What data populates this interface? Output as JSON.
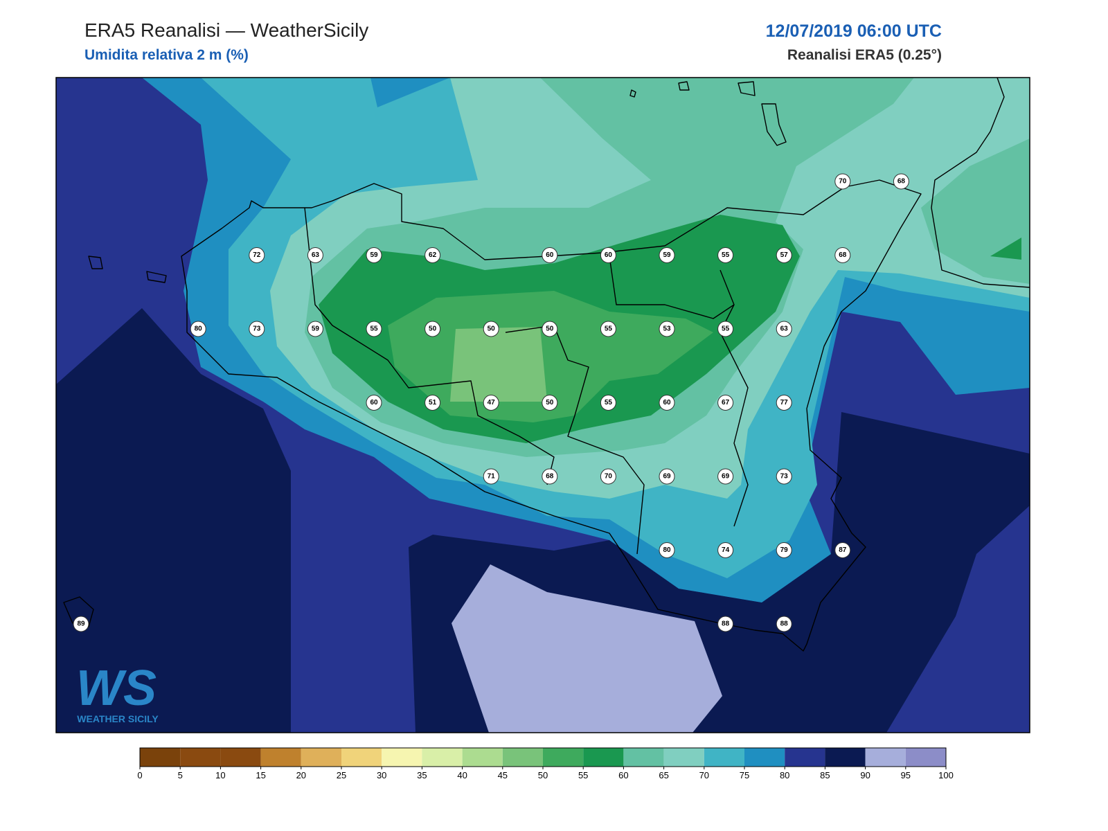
{
  "header": {
    "title": "ERA5 Reanalisi — WeatherSicily",
    "subtitle": "Umidita relativa 2 m (%)",
    "datetime": "12/07/2019 06:00 UTC",
    "source": "Reanalisi ERA5 (0.25°)"
  },
  "stations": {
    "rows": [
      [
        null,
        null,
        null,
        null,
        null,
        null,
        null,
        null,
        null,
        null,
        null,
        null,
        null,
        70,
        68
      ],
      [
        null,
        null,
        null,
        72,
        63,
        59,
        62,
        null,
        60,
        60,
        59,
        55,
        57,
        68,
        null
      ],
      [
        null,
        null,
        80,
        73,
        59,
        55,
        50,
        50,
        50,
        55,
        53,
        55,
        63,
        null,
        null
      ],
      [
        null,
        null,
        null,
        null,
        null,
        60,
        51,
        47,
        50,
        55,
        60,
        67,
        77,
        null,
        null
      ],
      [
        null,
        null,
        null,
        null,
        null,
        null,
        null,
        71,
        68,
        70,
        69,
        69,
        73,
        null,
        null
      ],
      [
        null,
        null,
        null,
        null,
        null,
        null,
        null,
        null,
        null,
        null,
        80,
        74,
        79,
        87,
        null
      ],
      [
        89,
        null,
        null,
        null,
        null,
        null,
        null,
        null,
        null,
        null,
        null,
        88,
        88,
        null,
        null
      ]
    ]
  },
  "logo": {
    "mark": "WS",
    "name": "WEATHER SICILY"
  },
  "colorbar": {
    "ticks": [
      0,
      5,
      10,
      15,
      20,
      25,
      30,
      35,
      40,
      45,
      50,
      55,
      60,
      65,
      70,
      75,
      80,
      85,
      90,
      95,
      100
    ],
    "colors": [
      "#7a420b",
      "#8a4a10",
      "#8a4a10",
      "#bf812d",
      "#dfb05a",
      "#f0d37a",
      "#f6f5b0",
      "#d9efa8",
      "#acdc90",
      "#79c37a",
      "#3eaa5d",
      "#1a9850",
      "#63c1a3",
      "#80cfc0",
      "#40b4c5",
      "#1f8fc1",
      "#26348f",
      "#0b1a52",
      "#a6aedb",
      "#8c8dc8"
    ]
  }
}
